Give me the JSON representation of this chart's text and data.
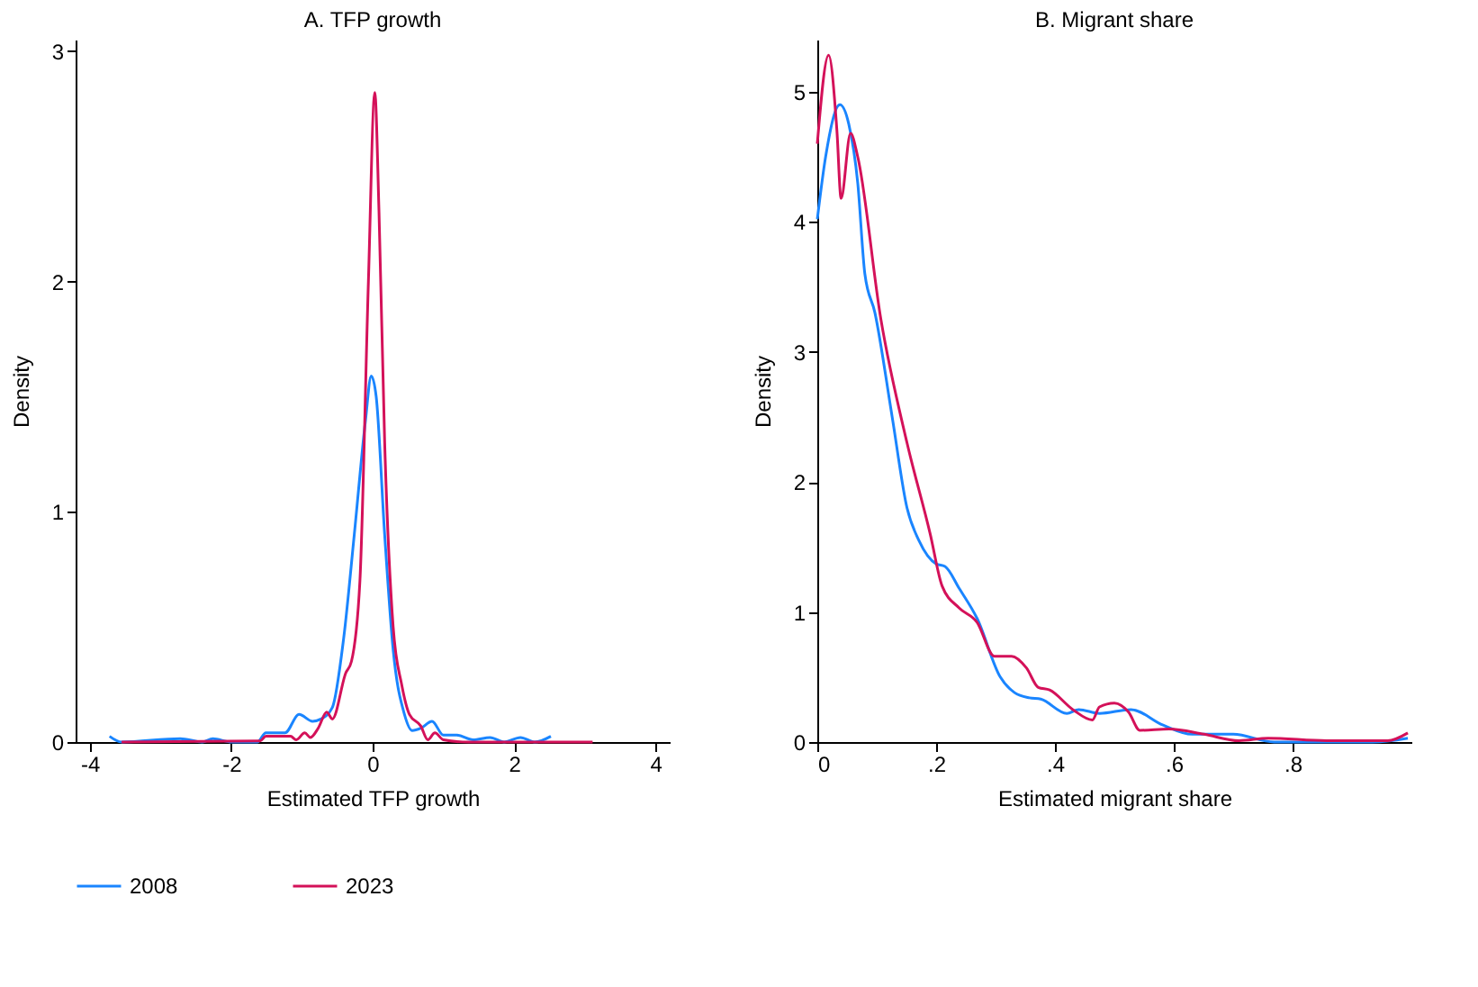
{
  "chart_data": [
    {
      "type": "line",
      "title": "A. TFP growth",
      "xlabel": "Estimated TFP growth",
      "ylabel": "Density",
      "xlim": [
        -4.2,
        4.2
      ],
      "xticks": [
        -4,
        -2,
        0,
        2,
        4
      ],
      "ylim": [
        0,
        3.05
      ],
      "yticks": [
        0,
        1,
        2,
        3
      ],
      "grid": false,
      "legend": "bottom",
      "marker": "none",
      "line_style": "solid",
      "series": [
        {
          "name": "2008",
          "color": "#1a85ff",
          "x": [
            -3.72,
            -3.55,
            -2.72,
            -2.41,
            -2.26,
            -2.0,
            -1.63,
            -1.51,
            -1.24,
            -1.04,
            -0.85,
            -0.73,
            -0.57,
            -0.41,
            -0.26,
            -0.1,
            -0.02,
            0.05,
            0.17,
            0.29,
            0.45,
            0.56,
            0.68,
            0.84,
            1.0,
            1.19,
            1.42,
            1.66,
            1.86,
            2.09,
            2.29,
            2.52
          ],
          "values": [
            0.025,
            0,
            0.015,
            0,
            0.015,
            0,
            0,
            0.04,
            0.04,
            0.12,
            0.09,
            0.1,
            0.15,
            0.45,
            0.9,
            1.4,
            1.59,
            1.5,
            0.9,
            0.4,
            0.12,
            0.05,
            0.06,
            0.09,
            0.03,
            0.03,
            0.01,
            0.02,
            0,
            0.02,
            0,
            0.025
          ]
        },
        {
          "name": "2023",
          "color": "#d41159",
          "x": [
            -3.55,
            -1.59,
            -1.51,
            -1.16,
            -1.08,
            -0.96,
            -0.88,
            -0.77,
            -0.65,
            -0.57,
            -0.38,
            -0.3,
            -0.18,
            -0.06,
            0.03,
            0.09,
            0.17,
            0.29,
            0.41,
            0.52,
            0.68,
            0.78,
            0.88,
            1.0,
            1.35,
            3.11
          ],
          "values": [
            0,
            0.005,
            0.025,
            0.025,
            0.01,
            0.04,
            0.02,
            0.06,
            0.13,
            0.1,
            0.3,
            0.35,
            0.7,
            2.0,
            2.82,
            2.3,
            1.3,
            0.5,
            0.25,
            0.12,
            0.07,
            0.01,
            0.04,
            0.01,
            0,
            0
          ]
        }
      ]
    },
    {
      "type": "line",
      "title": "B. Migrant share",
      "xlabel": "Estimated migrant share",
      "ylabel": "Density",
      "xlim": [
        0,
        1
      ],
      "xticks": [
        0,
        {
          "value": 0.2,
          "label": ".2"
        },
        {
          "value": 0.4,
          "label": ".4"
        },
        {
          "value": 0.6,
          "label": ".6"
        },
        {
          "value": 0.8,
          "label": ".8"
        }
      ],
      "ylim": [
        0,
        5.4
      ],
      "yticks": [
        0,
        1,
        2,
        3,
        4,
        5
      ],
      "grid": false,
      "legend": "bottom",
      "marker": "none",
      "line_style": "solid",
      "series": [
        {
          "name": "2008",
          "color": "#1a85ff",
          "x": [
            0,
            0.014,
            0.038,
            0.053,
            0.068,
            0.08,
            0.097,
            0.126,
            0.151,
            0.171,
            0.2,
            0.215,
            0.239,
            0.269,
            0.308,
            0.332,
            0.357,
            0.376,
            0.42,
            0.44,
            0.475,
            0.528,
            0.582,
            0.631,
            0.7,
            0.769,
            0.935,
            0.994
          ],
          "values": [
            4.02,
            4.5,
            4.9,
            4.75,
            4.3,
            3.6,
            3.3,
            2.5,
            1.8,
            1.55,
            1.37,
            1.35,
            1.18,
            0.95,
            0.5,
            0.38,
            0.34,
            0.33,
            0.22,
            0.25,
            0.22,
            0.25,
            0.13,
            0.06,
            0.06,
            0,
            0,
            0.03
          ]
        },
        {
          "name": "2023",
          "color": "#d41159",
          "x": [
            0,
            0.019,
            0.033,
            0.04,
            0.056,
            0.068,
            0.107,
            0.151,
            0.19,
            0.21,
            0.239,
            0.269,
            0.298,
            0.327,
            0.352,
            0.372,
            0.391,
            0.43,
            0.463,
            0.475,
            0.5,
            0.524,
            0.543,
            0.592,
            0.651,
            0.71,
            0.759,
            0.857,
            0.96,
            0.994
          ],
          "values": [
            4.6,
            5.28,
            4.7,
            4.18,
            4.68,
            4.5,
            3.25,
            2.3,
            1.6,
            1.2,
            1.03,
            0.92,
            0.66,
            0.66,
            0.57,
            0.42,
            0.4,
            0.25,
            0.17,
            0.27,
            0.3,
            0.23,
            0.09,
            0.1,
            0.06,
            0.01,
            0.03,
            0.01,
            0.01,
            0.07
          ]
        }
      ]
    }
  ]
}
